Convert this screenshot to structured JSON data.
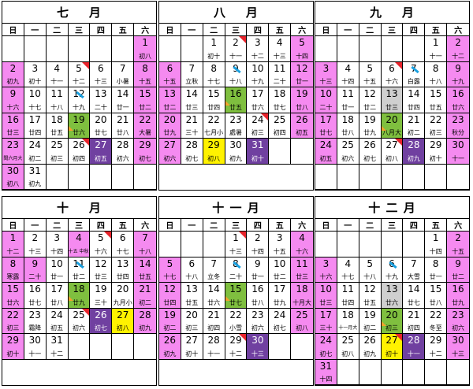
{
  "months": [
    {
      "title": "七    月",
      "weekdays": [
        "日",
        "一",
        "二",
        "三",
        "四",
        "五",
        "六"
      ],
      "cells": [
        {},
        {},
        {},
        {},
        {},
        {},
        {
          "d": "1",
          "l": "初八",
          "c": "pink"
        },
        {
          "d": "2",
          "l": "初九",
          "c": "pink"
        },
        {
          "d": "3",
          "l": "初十"
        },
        {
          "d": "4",
          "l": "十一"
        },
        {
          "d": "5",
          "l": "十二",
          "m": "tr"
        },
        {
          "d": "6",
          "l": "十三"
        },
        {
          "d": "7",
          "l": "小暑"
        },
        {
          "d": "8",
          "l": "十五",
          "c": "pink"
        },
        {
          "d": "9",
          "l": "十六",
          "c": "pink"
        },
        {
          "d": "10",
          "l": "十七"
        },
        {
          "d": "11",
          "l": "十八"
        },
        {
          "d": "12",
          "l": "十九",
          "m": "bl"
        },
        {
          "d": "13",
          "l": "二十"
        },
        {
          "d": "14",
          "l": "廿一"
        },
        {
          "d": "15",
          "l": "廿二",
          "c": "pink"
        },
        {
          "d": "16",
          "l": "廿三",
          "c": "pink"
        },
        {
          "d": "17",
          "l": "廿四"
        },
        {
          "d": "18",
          "l": "廿五"
        },
        {
          "d": "19",
          "l": "廿六",
          "c": "green",
          "m": "og"
        },
        {
          "d": "20",
          "l": "廿七"
        },
        {
          "d": "21",
          "l": "廿八"
        },
        {
          "d": "22",
          "l": "大暑",
          "c": "pink"
        },
        {
          "d": "23",
          "l": "閏六月大",
          "c": "pink",
          "s": 1
        },
        {
          "d": "24",
          "l": "初二"
        },
        {
          "d": "25",
          "l": "初三"
        },
        {
          "d": "26",
          "l": "初四",
          "m": "tr"
        },
        {
          "d": "27",
          "l": "初五",
          "c": "purple"
        },
        {
          "d": "28",
          "l": "初六"
        },
        {
          "d": "29",
          "l": "初七",
          "c": "pink"
        },
        {
          "d": "30",
          "l": "初八",
          "c": "pink"
        },
        {
          "d": "31",
          "l": "初九"
        },
        {},
        {},
        {},
        {},
        {}
      ]
    },
    {
      "title": "八    月",
      "weekdays": [
        "日",
        "一",
        "二",
        "三",
        "四",
        "五",
        "六"
      ],
      "cells": [
        {},
        {},
        {
          "d": "1",
          "l": "初十"
        },
        {
          "d": "2",
          "l": "十一",
          "m": "tr"
        },
        {
          "d": "3",
          "l": "十二"
        },
        {
          "d": "4",
          "l": "十三"
        },
        {
          "d": "5",
          "l": "十四",
          "c": "pink"
        },
        {
          "d": "6",
          "l": "十五",
          "c": "pink"
        },
        {
          "d": "7",
          "l": "立秋"
        },
        {
          "d": "8",
          "l": "十七"
        },
        {
          "d": "9",
          "l": "十八",
          "m": "bl"
        },
        {
          "d": "10",
          "l": "十九"
        },
        {
          "d": "11",
          "l": "二十"
        },
        {
          "d": "12",
          "l": "廿一",
          "c": "pink"
        },
        {
          "d": "13",
          "l": "廿二",
          "c": "pink"
        },
        {
          "d": "14",
          "l": "廿三"
        },
        {
          "d": "15",
          "l": "廿四"
        },
        {
          "d": "16",
          "l": "廿五",
          "c": "green",
          "m": "og"
        },
        {
          "d": "17",
          "l": "廿六"
        },
        {
          "d": "18",
          "l": "廿七"
        },
        {
          "d": "19",
          "l": "廿八",
          "c": "pink"
        },
        {
          "d": "20",
          "l": "廿九",
          "c": "pink"
        },
        {
          "d": "21",
          "l": "三十"
        },
        {
          "d": "22",
          "l": "七月小"
        },
        {
          "d": "23",
          "l": "處暑"
        },
        {
          "d": "24",
          "l": "初三",
          "m": "tr"
        },
        {
          "d": "25",
          "l": "初四"
        },
        {
          "d": "26",
          "l": "初五",
          "c": "pink"
        },
        {
          "d": "27",
          "l": "初六",
          "c": "pink"
        },
        {
          "d": "28",
          "l": "初七"
        },
        {
          "d": "29",
          "l": "初八",
          "c": "yellow"
        },
        {
          "d": "30",
          "l": "初九"
        },
        {
          "d": "31",
          "l": "初十",
          "c": "purple"
        },
        {},
        {}
      ]
    },
    {
      "title": "九    月",
      "weekdays": [
        "日",
        "一",
        "二",
        "三",
        "四",
        "五",
        "六"
      ],
      "cells": [
        {},
        {},
        {},
        {},
        {},
        {
          "d": "1",
          "l": "十一"
        },
        {
          "d": "2",
          "l": "十二",
          "c": "pink"
        },
        {
          "d": "3",
          "l": "十三",
          "c": "pink"
        },
        {
          "d": "4",
          "l": "十四"
        },
        {
          "d": "5",
          "l": "十五"
        },
        {
          "d": "6",
          "l": "十六",
          "m": "tr"
        },
        {
          "d": "7",
          "l": "白露",
          "m": "bl"
        },
        {
          "d": "8",
          "l": "十八"
        },
        {
          "d": "9",
          "l": "十九",
          "c": "pink"
        },
        {
          "d": "10",
          "l": "二十",
          "c": "pink"
        },
        {
          "d": "11",
          "l": "廿一"
        },
        {
          "d": "12",
          "l": "廿二"
        },
        {
          "d": "13",
          "l": "廿三",
          "c": "gray"
        },
        {
          "d": "14",
          "l": "廿四"
        },
        {
          "d": "15",
          "l": "廿五"
        },
        {
          "d": "16",
          "l": "廿六",
          "c": "pink"
        },
        {
          "d": "17",
          "l": "廿七",
          "c": "pink"
        },
        {
          "d": "18",
          "l": "廿八"
        },
        {
          "d": "19",
          "l": "廿九"
        },
        {
          "d": "20",
          "l": "八月大",
          "c": "green",
          "m": "og"
        },
        {
          "d": "21",
          "l": "初二"
        },
        {
          "d": "22",
          "l": "初三"
        },
        {
          "d": "23",
          "l": "秋分",
          "c": "pink"
        },
        {
          "d": "24",
          "l": "初五",
          "c": "pink"
        },
        {
          "d": "25",
          "l": "初六"
        },
        {
          "d": "26",
          "l": "初七"
        },
        {
          "d": "27",
          "l": "初八",
          "m": "tr"
        },
        {
          "d": "28",
          "l": "初九",
          "c": "purple"
        },
        {
          "d": "29",
          "l": "初十"
        },
        {
          "d": "30",
          "l": "十一",
          "c": "pink"
        },
        {},
        {},
        {},
        {},
        {},
        {},
        {}
      ]
    },
    {
      "title": "十    月",
      "weekdays": [
        "日",
        "一",
        "二",
        "三",
        "四",
        "五",
        "六"
      ],
      "cells": [
        {
          "d": "1",
          "l": "十二",
          "c": "pink"
        },
        {
          "d": "2",
          "l": "十三"
        },
        {
          "d": "3",
          "l": "十四"
        },
        {
          "d": "4",
          "l": "十五 中秋節",
          "c": "pink",
          "s": 1
        },
        {
          "d": "5",
          "l": "十六",
          "m": "tr"
        },
        {
          "d": "6",
          "l": "十七"
        },
        {
          "d": "7",
          "l": "十八",
          "c": "pink"
        },
        {
          "d": "8",
          "l": "寒露",
          "c": "pink"
        },
        {
          "d": "9",
          "l": "二十",
          "c": "pink"
        },
        {
          "d": "10",
          "l": "廿一"
        },
        {
          "d": "11",
          "l": "廿二",
          "m": "bl"
        },
        {
          "d": "12",
          "l": "廿三"
        },
        {
          "d": "13",
          "l": "廿四"
        },
        {
          "d": "14",
          "l": "廿五",
          "c": "pink"
        },
        {
          "d": "15",
          "l": "廿六",
          "c": "pink"
        },
        {
          "d": "16",
          "l": "廿七"
        },
        {
          "d": "17",
          "l": "廿八"
        },
        {
          "d": "18",
          "l": "廿九",
          "c": "green",
          "m": "og"
        },
        {
          "d": "19",
          "l": "三十"
        },
        {
          "d": "20",
          "l": "九月小"
        },
        {
          "d": "21",
          "l": "初二",
          "c": "pink"
        },
        {
          "d": "22",
          "l": "初三",
          "c": "pink"
        },
        {
          "d": "23",
          "l": "霜降"
        },
        {
          "d": "24",
          "l": "初五"
        },
        {
          "d": "25",
          "l": "初六",
          "m": "tr"
        },
        {
          "d": "26",
          "l": "初七",
          "c": "purple"
        },
        {
          "d": "27",
          "l": "初八",
          "c": "yellow"
        },
        {
          "d": "28",
          "l": "初九",
          "c": "pink"
        },
        {
          "d": "29",
          "l": "初十",
          "c": "pink"
        },
        {
          "d": "30",
          "l": "十一"
        },
        {
          "d": "31",
          "l": "十二"
        },
        {},
        {},
        {},
        {}
      ]
    },
    {
      "title": "十 一 月",
      "weekdays": [
        "日",
        "一",
        "二",
        "三",
        "四",
        "五",
        "六"
      ],
      "cells": [
        {},
        {},
        {},
        {
          "d": "1",
          "l": "十三",
          "m": "tr"
        },
        {
          "d": "2",
          "l": "十四"
        },
        {
          "d": "3",
          "l": "十五"
        },
        {
          "d": "4",
          "l": "十六",
          "c": "pink"
        },
        {
          "d": "5",
          "l": "十七",
          "c": "pink"
        },
        {
          "d": "6",
          "l": "十八"
        },
        {
          "d": "7",
          "l": "立冬"
        },
        {
          "d": "8",
          "l": "二十",
          "m": "bl"
        },
        {
          "d": "9",
          "l": "廿一"
        },
        {
          "d": "10",
          "l": "廿二"
        },
        {
          "d": "11",
          "l": "廿三",
          "c": "pink"
        },
        {
          "d": "12",
          "l": "廿四",
          "c": "pink"
        },
        {
          "d": "13",
          "l": "廿五"
        },
        {
          "d": "14",
          "l": "廿六"
        },
        {
          "d": "15",
          "l": "廿七",
          "c": "green",
          "m": "og"
        },
        {
          "d": "16",
          "l": "廿八"
        },
        {
          "d": "17",
          "l": "廿九"
        },
        {
          "d": "18",
          "l": "十月大",
          "c": "pink"
        },
        {
          "d": "19",
          "l": "初二",
          "c": "pink"
        },
        {
          "d": "20",
          "l": "初三"
        },
        {
          "d": "21",
          "l": "初四"
        },
        {
          "d": "22",
          "l": "小雪"
        },
        {
          "d": "23",
          "l": "初六"
        },
        {
          "d": "24",
          "l": "初七"
        },
        {
          "d": "25",
          "l": "初八",
          "c": "pink"
        },
        {
          "d": "26",
          "l": "初九",
          "c": "pink"
        },
        {
          "d": "27",
          "l": "初十"
        },
        {
          "d": "28",
          "l": "十一"
        },
        {
          "d": "29",
          "l": "十二",
          "m": "tr"
        },
        {
          "d": "30",
          "l": "十三",
          "c": "purple"
        },
        {},
        {}
      ]
    },
    {
      "title": "十 二 月",
      "weekdays": [
        "日",
        "一",
        "二",
        "三",
        "四",
        "五",
        "六"
      ],
      "cells": [
        {},
        {},
        {},
        {},
        {},
        {
          "d": "1",
          "l": "十四"
        },
        {
          "d": "2",
          "l": "十五",
          "c": "pink"
        },
        {
          "d": "3",
          "l": "十六",
          "c": "pink"
        },
        {
          "d": "4",
          "l": "十七"
        },
        {
          "d": "5",
          "l": "十八"
        },
        {
          "d": "6",
          "l": "十九",
          "m": "bl"
        },
        {
          "d": "7",
          "l": "大雪"
        },
        {
          "d": "8",
          "l": "廿一"
        },
        {
          "d": "9",
          "l": "廿二",
          "c": "pink"
        },
        {
          "d": "10",
          "l": "廿三",
          "c": "pink"
        },
        {
          "d": "11",
          "l": "廿四"
        },
        {
          "d": "12",
          "l": "廿五"
        },
        {
          "d": "13",
          "l": "廿六",
          "c": "gray"
        },
        {
          "d": "14",
          "l": "廿七"
        },
        {
          "d": "15",
          "l": "廿八"
        },
        {
          "d": "16",
          "l": "廿九",
          "c": "pink"
        },
        {
          "d": "17",
          "l": "三十",
          "c": "pink"
        },
        {
          "d": "18",
          "l": "十一月大",
          "s": 1
        },
        {
          "d": "19",
          "l": "初二"
        },
        {
          "d": "20",
          "l": "初三",
          "c": "green",
          "m": "og"
        },
        {
          "d": "21",
          "l": "初四"
        },
        {
          "d": "22",
          "l": "冬至"
        },
        {
          "d": "23",
          "l": "初六",
          "c": "pink"
        },
        {
          "d": "24",
          "l": "初七",
          "c": "pink"
        },
        {
          "d": "25",
          "l": "初八"
        },
        {
          "d": "26",
          "l": "初九"
        },
        {
          "d": "27",
          "l": "初十",
          "c": "yellow",
          "m": "tr"
        },
        {
          "d": "28",
          "l": "十一",
          "c": "purple"
        },
        {
          "d": "29",
          "l": "十二"
        },
        {
          "d": "30",
          "l": "十三",
          "c": "pink"
        },
        {
          "d": "31",
          "l": "十四",
          "c": "pink"
        },
        {},
        {},
        {},
        {},
        {},
        {}
      ]
    }
  ],
  "colors": {
    "pink": "#f58af0",
    "green": "#7fbf3f",
    "purple": "#7040a0",
    "yellow": "#fff200",
    "gray": "#cfcfcf",
    "corner": "#e8242c",
    "marker": "#1aa0e0",
    "tick": "#f2a32d"
  }
}
